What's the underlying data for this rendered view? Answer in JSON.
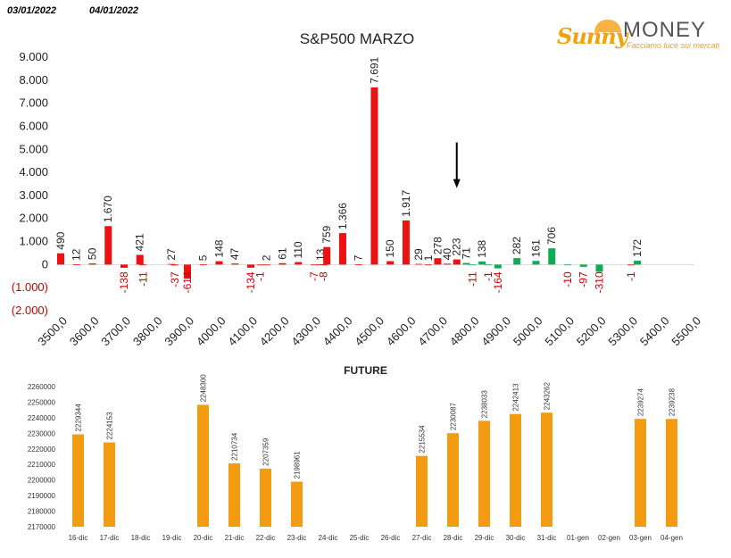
{
  "header": {
    "date_left": "03/01/2022",
    "date_right": "04/01/2022",
    "logo_text_1": "Sunny",
    "logo_text_2": "MONEY",
    "logo_tagline": "Facciamo luce sui mercati"
  },
  "colors": {
    "positive_red": "#ee1111",
    "positive_green": "#11aa55",
    "negative_label": "#cc0000",
    "future_bar": "#f39c12"
  },
  "chart_data": [
    {
      "type": "bar",
      "title": "S&P500 MARZO",
      "ylim": [
        -2000,
        9000
      ],
      "yticks": [
        {
          "value": 9000,
          "label": "9.000",
          "neg": false
        },
        {
          "value": 8000,
          "label": "8.000",
          "neg": false
        },
        {
          "value": 7000,
          "label": "7.000",
          "neg": false
        },
        {
          "value": 6000,
          "label": "6.000",
          "neg": false
        },
        {
          "value": 5000,
          "label": "5.000",
          "neg": false
        },
        {
          "value": 4000,
          "label": "4.000",
          "neg": false
        },
        {
          "value": 3000,
          "label": "3.000",
          "neg": false
        },
        {
          "value": 2000,
          "label": "2.000",
          "neg": false
        },
        {
          "value": 1000,
          "label": "1.000",
          "neg": false
        },
        {
          "value": 0,
          "label": "0",
          "neg": false
        },
        {
          "value": -1000,
          "label": "(1.000)",
          "neg": true
        },
        {
          "value": -2000,
          "label": "(2.000)",
          "neg": true
        }
      ],
      "xlim": [
        3500,
        5500
      ],
      "xticks": [
        "3500,0",
        "3600,0",
        "3700,0",
        "3800,0",
        "3900,0",
        "4000,0",
        "4100,0",
        "4200,0",
        "4300,0",
        "4400,0",
        "4500,0",
        "4600,0",
        "4700,0",
        "4800,0",
        "4900,0",
        "5000,0",
        "5100,0",
        "5200,0",
        "5300,0",
        "5400,0",
        "5500,0"
      ],
      "xtick_values": [
        3500,
        3600,
        3700,
        3800,
        3900,
        4000,
        4100,
        4200,
        4300,
        4400,
        4500,
        4600,
        4700,
        4800,
        4900,
        5000,
        5100,
        5200,
        5300,
        5400,
        5500
      ],
      "series": [
        {
          "color": "#ee1111",
          "points": [
            {
              "x": 3500,
              "v": 490,
              "label": "490"
            },
            {
              "x": 3550,
              "v": 12,
              "label": "12"
            },
            {
              "x": 3600,
              "v": 50,
              "label": "50"
            },
            {
              "x": 3650,
              "v": 1670,
              "label": "1.670"
            },
            {
              "x": 3750,
              "v": 421,
              "label": "421"
            },
            {
              "x": 3850,
              "v": 27,
              "label": "27"
            },
            {
              "x": 3950,
              "v": 5,
              "label": "5"
            },
            {
              "x": 4000,
              "v": 148,
              "label": "148"
            },
            {
              "x": 4050,
              "v": 47,
              "label": "47"
            },
            {
              "x": 4150,
              "v": 2,
              "label": "2"
            },
            {
              "x": 4200,
              "v": 61,
              "label": "61"
            },
            {
              "x": 4250,
              "v": 110,
              "label": "110"
            },
            {
              "x": 4320,
              "v": 13,
              "label": "13"
            },
            {
              "x": 4340,
              "v": 759,
              "label": "759"
            },
            {
              "x": 4390,
              "v": 1366,
              "label": "1.366"
            },
            {
              "x": 4440,
              "v": 7,
              "label": "7"
            },
            {
              "x": 4490,
              "v": 7691,
              "label": "7.691"
            },
            {
              "x": 4540,
              "v": 150,
              "label": "150"
            },
            {
              "x": 4590,
              "v": 1917,
              "label": "1.917"
            },
            {
              "x": 4630,
              "v": 29,
              "label": "29"
            },
            {
              "x": 4660,
              "v": 1,
              "label": "1"
            },
            {
              "x": 4690,
              "v": 278,
              "label": "278"
            },
            {
              "x": 4720,
              "v": 40,
              "label": "40"
            },
            {
              "x": 4750,
              "v": 223,
              "label": "223"
            },
            {
              "x": 3700,
              "v": -138,
              "label": "-138"
            },
            {
              "x": 3760,
              "v": -11,
              "label": "-11"
            },
            {
              "x": 3860,
              "v": -37,
              "label": "-37"
            },
            {
              "x": 3900,
              "v": -614,
              "label": "-614"
            },
            {
              "x": 4100,
              "v": -134,
              "label": "-134"
            },
            {
              "x": 4130,
              "v": -1,
              "label": "-1"
            },
            {
              "x": 4300,
              "v": -7,
              "label": "-7"
            },
            {
              "x": 4330,
              "v": -8,
              "label": "-8"
            },
            {
              "x": 5300,
              "v": -1,
              "label": "-1"
            }
          ]
        },
        {
          "color": "#11aa55",
          "points": [
            {
              "x": 4780,
              "v": 71,
              "label": "71"
            },
            {
              "x": 4800,
              "v": -11,
              "label": "-11"
            },
            {
              "x": 4830,
              "v": 138,
              "label": "138"
            },
            {
              "x": 4850,
              "v": -1,
              "label": "-1"
            },
            {
              "x": 4880,
              "v": -164,
              "label": "-164"
            },
            {
              "x": 4940,
              "v": 282,
              "label": "282"
            },
            {
              "x": 5000,
              "v": 161,
              "label": "161"
            },
            {
              "x": 5050,
              "v": 706,
              "label": "706"
            },
            {
              "x": 5100,
              "v": -10,
              "label": "-10"
            },
            {
              "x": 5150,
              "v": -97,
              "label": "-97"
            },
            {
              "x": 5200,
              "v": -310,
              "label": "-310"
            },
            {
              "x": 5320,
              "v": 172,
              "label": "172"
            }
          ]
        }
      ],
      "annotation": {
        "type": "arrow-down",
        "x": 4750,
        "from": 5300,
        "to": 3400
      }
    },
    {
      "type": "bar",
      "title": "FUTURE",
      "ylim": [
        2170000,
        2260000
      ],
      "yticks": [
        2260000,
        2250000,
        2240000,
        2230000,
        2220000,
        2210000,
        2200000,
        2190000,
        2180000,
        2170000
      ],
      "categories": [
        "16-dic",
        "17-dic",
        "18-dic",
        "19-dic",
        "20-dic",
        "21-dic",
        "22-dic",
        "23-dic",
        "24-dic",
        "25-dic",
        "26-dic",
        "27-dic",
        "28-dic",
        "29-dic",
        "30-dic",
        "31-dic",
        "01-gen",
        "02-gen",
        "03-gen",
        "04-gen"
      ],
      "values": [
        2229344,
        2224153,
        null,
        null,
        2248300,
        2210734,
        2207359,
        2198961,
        null,
        null,
        null,
        2215534,
        2230087,
        2238033,
        2242413,
        2243262,
        null,
        null,
        2239274,
        2239238
      ],
      "labels": [
        "2229344",
        "2224153",
        "",
        "",
        "2248300",
        "2210734",
        "2207359",
        "2198961",
        "",
        "",
        "",
        "2215534",
        "2230087",
        "2238033",
        "2242413",
        "2243262",
        "",
        "",
        "2239274",
        "2239238"
      ]
    }
  ]
}
